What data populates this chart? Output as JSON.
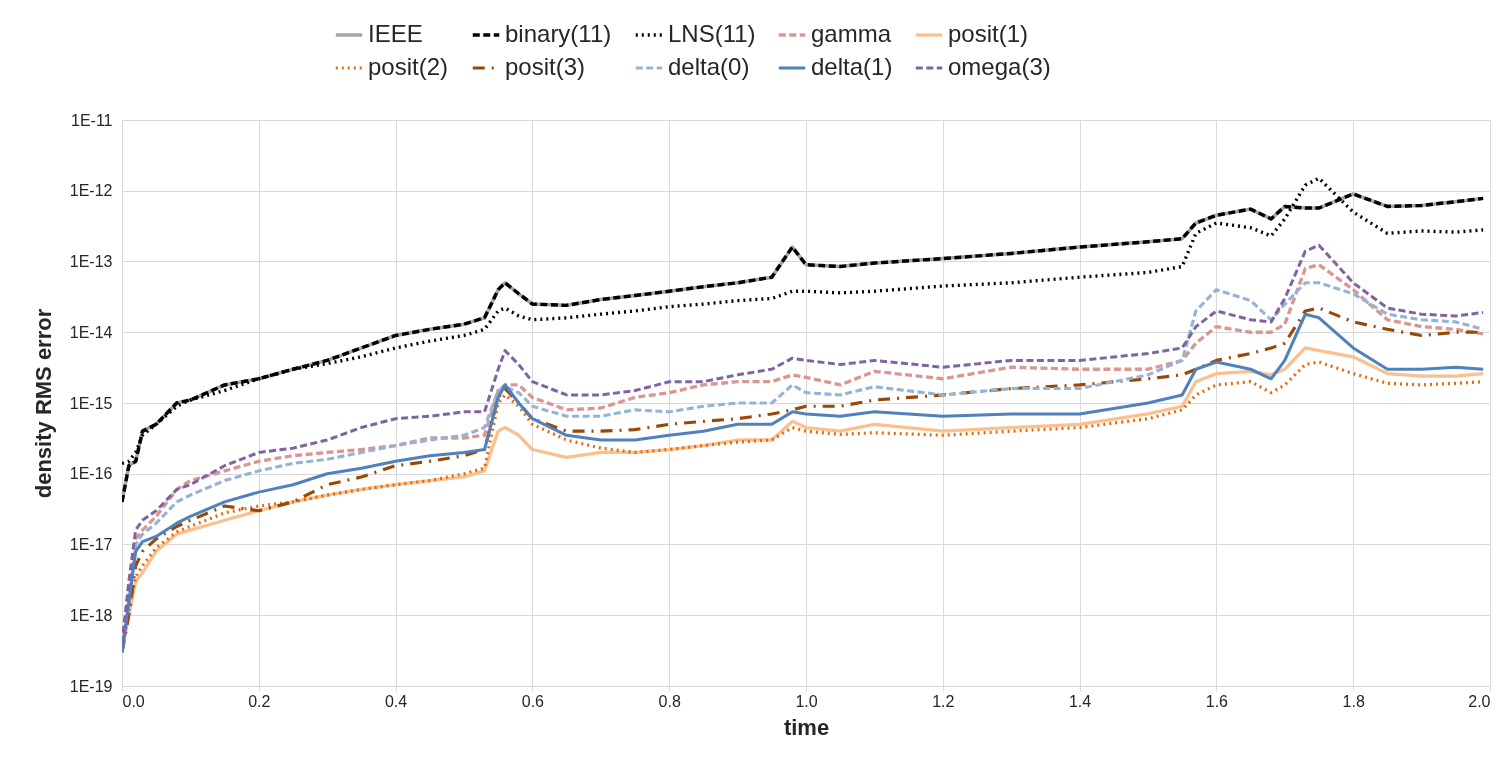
{
  "chart_data": {
    "type": "line",
    "xlabel": "time",
    "ylabel": "density RMS error",
    "log": true,
    "grid": true,
    "legend": "top",
    "marker": "none",
    "x": [
      0,
      0.01,
      0.02,
      0.03,
      0.05,
      0.08,
      0.1,
      0.15,
      0.2,
      0.25,
      0.3,
      0.35,
      0.4,
      0.45,
      0.5,
      0.53,
      0.55,
      0.56,
      0.58,
      0.6,
      0.65,
      0.7,
      0.75,
      0.8,
      0.85,
      0.9,
      0.95,
      0.98,
      1.0,
      1.05,
      1.1,
      1.2,
      1.3,
      1.4,
      1.5,
      1.55,
      1.57,
      1.6,
      1.65,
      1.68,
      1.7,
      1.73,
      1.75,
      1.8,
      1.85,
      1.9,
      1.95,
      1.99
    ],
    "xlim": [
      0,
      2
    ],
    "xticks": [
      {
        "value": 0,
        "label": "0.0"
      },
      {
        "value": 0.2,
        "label": "0.2"
      },
      {
        "value": 0.4,
        "label": "0.4"
      },
      {
        "value": 0.6,
        "label": "0.6"
      },
      {
        "value": 0.8,
        "label": "0.8"
      },
      {
        "value": 1,
        "label": "1.0"
      },
      {
        "value": 1.2,
        "label": "1.2"
      },
      {
        "value": 1.4,
        "label": "1.4"
      },
      {
        "value": 1.6,
        "label": "1.6"
      },
      {
        "value": 1.8,
        "label": "1.8"
      },
      {
        "value": 2,
        "label": "2.0"
      }
    ],
    "ylim": [
      1e-19,
      1e-11
    ],
    "yticks": [
      {
        "value": 1e-19,
        "label": "1E-19"
      },
      {
        "value": 1e-18,
        "label": "1E-18"
      },
      {
        "value": 1e-17,
        "label": "1E-17"
      },
      {
        "value": 1e-16,
        "label": "1E-16"
      },
      {
        "value": 1e-15,
        "label": "1E-15"
      },
      {
        "value": 1e-14,
        "label": "1E-14"
      },
      {
        "value": 1e-13,
        "label": "1E-13"
      },
      {
        "value": 1e-12,
        "label": "1E-12"
      },
      {
        "value": 1e-11,
        "label": "1E-11"
      }
    ],
    "series": [
      {
        "name": "IEEE",
        "color": "#a6a6a6",
        "line_style": "solid",
        "values": [
          4e-17,
          1.3e-16,
          1.5e-16,
          4e-16,
          5e-16,
          1e-15,
          1.1e-15,
          1.8e-15,
          2.2e-15,
          3e-15,
          4e-15,
          6e-15,
          9e-15,
          1.1e-14,
          1.3e-14,
          1.6e-14,
          4e-14,
          5e-14,
          3.5e-14,
          2.5e-14,
          2.4e-14,
          2.9e-14,
          3.3e-14,
          3.8e-14,
          4.4e-14,
          5e-14,
          6e-14,
          1.6e-13,
          9e-14,
          8.5e-14,
          9.5e-14,
          1.1e-13,
          1.3e-13,
          1.6e-13,
          1.9e-13,
          2.1e-13,
          3.5e-13,
          4.5e-13,
          5.5e-13,
          4e-13,
          6e-13,
          5.7e-13,
          5.7e-13,
          9e-13,
          6e-13,
          6.2e-13,
          7e-13,
          7.8e-13
        ]
      },
      {
        "name": "binary(11)",
        "color": "#000000",
        "line_style": "dashed",
        "values": [
          4e-17,
          1.3e-16,
          1.5e-16,
          4e-16,
          5e-16,
          1e-15,
          1.1e-15,
          1.8e-15,
          2.2e-15,
          3e-15,
          4e-15,
          6e-15,
          9e-15,
          1.1e-14,
          1.3e-14,
          1.6e-14,
          4e-14,
          5e-14,
          3.5e-14,
          2.5e-14,
          2.4e-14,
          2.9e-14,
          3.3e-14,
          3.8e-14,
          4.4e-14,
          5e-14,
          6e-14,
          1.6e-13,
          9e-14,
          8.5e-14,
          9.5e-14,
          1.1e-13,
          1.3e-13,
          1.6e-13,
          1.9e-13,
          2.1e-13,
          3.5e-13,
          4.5e-13,
          5.5e-13,
          4e-13,
          6e-13,
          5.7e-13,
          5.7e-13,
          9e-13,
          6e-13,
          6.2e-13,
          7e-13,
          7.8e-13
        ]
      },
      {
        "name": "LNS(11)",
        "color": "#000000",
        "line_style": "dotted",
        "values": [
          1.4e-16,
          1.5e-16,
          2e-16,
          3.5e-16,
          5e-16,
          9e-16,
          1.1e-15,
          1.5e-15,
          2.2e-15,
          3e-15,
          3.6e-15,
          4.5e-15,
          6e-15,
          7.5e-15,
          9e-15,
          1.1e-14,
          2e-14,
          2.2e-14,
          1.7e-14,
          1.5e-14,
          1.6e-14,
          1.8e-14,
          2e-14,
          2.3e-14,
          2.5e-14,
          2.8e-14,
          3e-14,
          3.8e-14,
          3.8e-14,
          3.6e-14,
          3.8e-14,
          4.5e-14,
          5e-14,
          6e-14,
          7e-14,
          8.5e-14,
          2.5e-13,
          3.5e-13,
          3e-13,
          2.3e-13,
          4e-13,
          1.2e-12,
          1.5e-12,
          5e-13,
          2.5e-13,
          2.7e-13,
          2.6e-13,
          2.8e-13
        ]
      },
      {
        "name": "gamma",
        "color": "#d99694",
        "line_style": "dashed",
        "values": [
          4e-19,
          2e-18,
          1.2e-17,
          1.6e-17,
          2.5e-17,
          6e-17,
          8e-17,
          1.1e-16,
          1.5e-16,
          1.8e-16,
          2e-16,
          2.2e-16,
          2.5e-16,
          3.2e-16,
          3.2e-16,
          3.5e-16,
          1.5e-15,
          1.8e-15,
          1.8e-15,
          1.2e-15,
          8e-16,
          8.5e-16,
          1.2e-15,
          1.4e-15,
          1.8e-15,
          2e-15,
          2e-15,
          2.5e-15,
          2.3e-15,
          1.8e-15,
          2.8e-15,
          2.2e-15,
          3.2e-15,
          3e-15,
          3e-15,
          4e-15,
          7e-15,
          1.2e-14,
          1e-14,
          1e-14,
          1.3e-14,
          8e-14,
          9e-14,
          4e-14,
          1.5e-14,
          1.2e-14,
          1.1e-14,
          9.5e-15
        ]
      },
      {
        "name": "posit(1)",
        "color": "#fac090",
        "line_style": "solid",
        "values": [
          3e-19,
          1e-18,
          3e-18,
          4e-18,
          8e-18,
          1.4e-17,
          1.6e-17,
          2.2e-17,
          3e-17,
          4e-17,
          5e-17,
          6e-17,
          7e-17,
          8e-17,
          9e-17,
          1.1e-16,
          4e-16,
          4.5e-16,
          3.5e-16,
          2.2e-16,
          1.7e-16,
          2e-16,
          2e-16,
          2.2e-16,
          2.5e-16,
          3e-16,
          3e-16,
          5.5e-16,
          4.5e-16,
          4e-16,
          5e-16,
          4e-16,
          4.5e-16,
          5e-16,
          7e-16,
          9e-16,
          2e-15,
          2.6e-15,
          2.8e-15,
          2.5e-15,
          3e-15,
          6e-15,
          5.5e-15,
          4.5e-15,
          2.6e-15,
          2.4e-15,
          2.4e-15,
          2.6e-15
        ]
      },
      {
        "name": "posit(2)",
        "color": "#e46c0a",
        "line_style": "dotted",
        "values": [
          3e-19,
          1.2e-18,
          3.5e-18,
          5e-18,
          9e-18,
          1.5e-17,
          1.8e-17,
          2.8e-17,
          3.5e-17,
          4e-17,
          5e-17,
          6e-17,
          7e-17,
          8e-17,
          1e-16,
          1.2e-16,
          1e-15,
          1.3e-15,
          9e-16,
          5e-16,
          3e-16,
          2.3e-16,
          2e-16,
          2.2e-16,
          2.5e-16,
          2.8e-16,
          3e-16,
          4.5e-16,
          4e-16,
          3.6e-16,
          3.8e-16,
          3.5e-16,
          4e-16,
          4.5e-16,
          6e-16,
          8e-16,
          1.3e-15,
          1.8e-15,
          2e-15,
          1.4e-15,
          1.8e-15,
          3.5e-15,
          3.8e-15,
          2.6e-15,
          1.9e-15,
          1.8e-15,
          1.9e-15,
          2e-15
        ]
      },
      {
        "name": "posit(3)",
        "color": "#984807",
        "line_style": "dashdot",
        "values": [
          3e-19,
          1e-18,
          5e-18,
          8e-18,
          1.2e-17,
          1.8e-17,
          2.2e-17,
          3.5e-17,
          3e-17,
          4e-17,
          7e-17,
          9e-17,
          1.3e-16,
          1.5e-16,
          1.8e-16,
          2.2e-16,
          1.2e-15,
          1.6e-15,
          1e-15,
          6e-16,
          4e-16,
          4e-16,
          4.2e-16,
          5e-16,
          5.5e-16,
          6e-16,
          7e-16,
          8e-16,
          9e-16,
          9e-16,
          1.1e-15,
          1.3e-15,
          1.6e-15,
          1.8e-15,
          2.2e-15,
          2.5e-15,
          3e-15,
          4e-15,
          5e-15,
          6e-15,
          7e-15,
          2e-14,
          2.2e-14,
          1.4e-14,
          1.1e-14,
          9e-15,
          1e-14,
          1e-14
        ]
      },
      {
        "name": "delta(0)",
        "color": "#95b3d7",
        "line_style": "dashed",
        "values": [
          3e-19,
          2e-18,
          1e-17,
          1.4e-17,
          2e-17,
          4e-17,
          5e-17,
          8e-17,
          1.1e-16,
          1.4e-16,
          1.6e-16,
          2e-16,
          2.5e-16,
          3e-16,
          3.5e-16,
          4.5e-16,
          1.5e-15,
          1.7e-15,
          1.4e-15,
          9e-16,
          6.5e-16,
          6.5e-16,
          8e-16,
          7.5e-16,
          9e-16,
          1e-15,
          1e-15,
          1.8e-15,
          1.4e-15,
          1.3e-15,
          1.7e-15,
          1.3e-15,
          1.6e-15,
          1.6e-15,
          2.5e-15,
          4e-15,
          2e-14,
          4e-14,
          2.8e-14,
          1.5e-14,
          2.5e-14,
          5e-14,
          5e-14,
          3.5e-14,
          1.8e-14,
          1.5e-14,
          1.4e-14,
          1.1e-14
        ]
      },
      {
        "name": "delta(1)",
        "color": "#4f81bd",
        "line_style": "solid",
        "values": [
          3e-19,
          1.5e-18,
          8e-18,
          1.1e-17,
          1.3e-17,
          2e-17,
          2.5e-17,
          4e-17,
          5.5e-17,
          7e-17,
          1e-16,
          1.2e-16,
          1.5e-16,
          1.8e-16,
          2e-16,
          2.2e-16,
          1.2e-15,
          1.8e-15,
          1e-15,
          6e-16,
          3.5e-16,
          3e-16,
          3e-16,
          3.5e-16,
          4e-16,
          5e-16,
          5e-16,
          7.5e-16,
          7e-16,
          6.5e-16,
          7.5e-16,
          6.5e-16,
          7e-16,
          7e-16,
          1e-15,
          1.3e-15,
          3e-15,
          3.8e-15,
          3e-15,
          2.2e-15,
          4e-15,
          1.8e-14,
          1.6e-14,
          6e-15,
          3e-15,
          3e-15,
          3.2e-15,
          3e-15
        ]
      },
      {
        "name": "omega(3)",
        "color": "#8064a2",
        "line_style": "dashed",
        "values": [
          4e-19,
          3e-18,
          1.6e-17,
          2.2e-17,
          3e-17,
          6e-17,
          7e-17,
          1.3e-16,
          2e-16,
          2.3e-16,
          3e-16,
          4.5e-16,
          6e-16,
          6.5e-16,
          7.5e-16,
          7.5e-16,
          3e-15,
          5.5e-15,
          3.5e-15,
          2e-15,
          1.3e-15,
          1.3e-15,
          1.5e-15,
          2e-15,
          2e-15,
          2.5e-15,
          3e-15,
          4.3e-15,
          4e-15,
          3.5e-15,
          4e-15,
          3.2e-15,
          4e-15,
          4e-15,
          5e-15,
          6e-15,
          1.2e-14,
          2e-14,
          1.5e-14,
          1.4e-14,
          3e-14,
          1.4e-13,
          1.7e-13,
          5e-14,
          2.2e-14,
          1.8e-14,
          1.7e-14,
          1.9e-14
        ]
      }
    ]
  }
}
